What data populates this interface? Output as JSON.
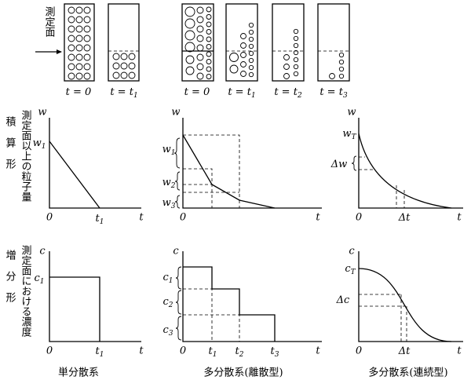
{
  "top": {
    "arrow_label": "測定面",
    "single_tubes": [
      {
        "text": "t = 0"
      },
      {
        "text": "t = t",
        "sub": "1"
      }
    ],
    "multi_tubes": [
      {
        "text": "t = 0"
      },
      {
        "text": "t = t",
        "sub": "1"
      },
      {
        "text": "t = t",
        "sub": "2"
      },
      {
        "text": "t = t",
        "sub": "3"
      }
    ]
  },
  "row_labels": [
    {
      "title": "積算形",
      "description": "測定面以上の粒子量"
    },
    {
      "title": "増分形",
      "description": "測定面における濃度"
    }
  ],
  "integral_panels": [
    {
      "y_axis": "w",
      "x_axis": "t",
      "origin": "0",
      "marks": [
        {
          "text": "w",
          "sub": "1"
        },
        {
          "text": "t",
          "sub": "1"
        }
      ]
    },
    {
      "y_axis": "w",
      "x_axis": "t",
      "origin": "0",
      "marks": [
        {
          "text": "w",
          "sub": "1"
        },
        {
          "text": "w",
          "sub": "2"
        },
        {
          "text": "w",
          "sub": "3"
        }
      ]
    },
    {
      "y_axis": "w",
      "x_axis": "t",
      "origin": "0",
      "marks": [
        {
          "text": "w",
          "sub": "T"
        },
        {
          "text": "Δw"
        },
        {
          "text": "Δt"
        }
      ]
    }
  ],
  "incremental_panels": [
    {
      "y_axis": "c",
      "x_axis": "t",
      "origin": "0",
      "marks": [
        {
          "text": "c",
          "sub": "1"
        },
        {
          "text": "t",
          "sub": "1"
        }
      ]
    },
    {
      "y_axis": "c",
      "x_axis": "t",
      "origin": "0",
      "marks": [
        {
          "text": "c",
          "sub": "1"
        },
        {
          "text": "c",
          "sub": "2"
        },
        {
          "text": "c",
          "sub": "3"
        },
        {
          "text": "t",
          "sub": "1"
        },
        {
          "text": "t",
          "sub": "2"
        },
        {
          "text": "t",
          "sub": "3"
        }
      ]
    },
    {
      "y_axis": "c",
      "x_axis": "t",
      "origin": "0",
      "marks": [
        {
          "text": "c",
          "sub": "T"
        },
        {
          "text": "Δc"
        },
        {
          "text": "Δt"
        }
      ]
    }
  ],
  "column_labels": [
    "単分散系",
    "多分散系(離散型)",
    "多分散系(連続型)"
  ]
}
